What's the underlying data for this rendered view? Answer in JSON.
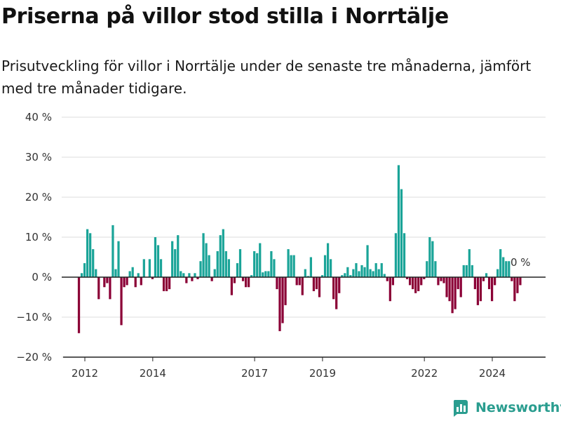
{
  "title": "Priserna på villor stod stilla i Norrtälje",
  "subtitle": "Prisutveckling för villor i Norrtälje under de senaste tre månaderna, jämfört med tre månader tidigare.",
  "brand": "Newsworthy",
  "colors": {
    "positive": "#1aa498",
    "negative": "#8b0036",
    "axis": "#222222",
    "grid": "#dddddd"
  },
  "chart_data": {
    "type": "bar",
    "ylim": [
      -20,
      40
    ],
    "yticks": [
      -20,
      -10,
      0,
      10,
      20,
      30,
      40
    ],
    "ytick_labels": [
      "−20 %",
      "−10 %",
      "0 %",
      "10 %",
      "20 %",
      "30 %",
      "40 %"
    ],
    "xticks": [
      {
        "year": 2012,
        "label": "2012"
      },
      {
        "year": 2014,
        "label": "2014"
      },
      {
        "year": 2017,
        "label": "2017"
      },
      {
        "year": 2019,
        "label": "2019"
      },
      {
        "year": 2022,
        "label": "2022"
      },
      {
        "year": 2024,
        "label": "2024"
      }
    ],
    "start": "2011-11",
    "frequency": "monthly",
    "last_label": "0 %",
    "values": [
      -14,
      1,
      3.5,
      12,
      11,
      7,
      2,
      -5.5,
      0,
      -2.5,
      -1.5,
      -5.5,
      13,
      2,
      9,
      -12,
      -2.5,
      -2,
      1.5,
      2.5,
      -2.5,
      1,
      -2,
      4.5,
      0,
      4.5,
      -0.5,
      10,
      8,
      4.5,
      -3.5,
      -3.5,
      -3,
      9,
      7,
      10.5,
      1.5,
      1,
      -1.5,
      1,
      -1,
      1,
      -0.5,
      4,
      11,
      8.5,
      5.5,
      -1,
      2,
      6.5,
      10.5,
      12,
      6.5,
      4.5,
      -4.5,
      -1.5,
      3.5,
      7,
      -1,
      -2.5,
      -2.5,
      0.5,
      6.5,
      6,
      8.5,
      1.2,
      1.5,
      1.5,
      6.5,
      4.5,
      -3,
      -13.5,
      -11.5,
      -7,
      7,
      5.5,
      5.5,
      -2,
      -2,
      -4.5,
      2,
      0.3,
      5,
      -3.5,
      -3,
      -5,
      0.5,
      5.5,
      8.5,
      4.5,
      -5.5,
      -8,
      -4,
      0.5,
      1,
      2.5,
      0.5,
      2,
      3.5,
      1.5,
      3,
      2.5,
      8,
      2,
      1.5,
      3.5,
      2,
      3.5,
      0.8,
      -1,
      -6,
      -2,
      11,
      28,
      22,
      11,
      -0.5,
      -2,
      -3,
      -4,
      -3.5,
      -2,
      -0.5,
      4,
      10,
      9,
      4,
      -2,
      -1,
      -1.5,
      -5,
      -6,
      -9,
      -8,
      -3,
      -5,
      3,
      3,
      7,
      3,
      -3,
      -7,
      -6,
      -1,
      1,
      -3,
      -6,
      -2,
      2,
      7,
      5,
      4,
      4,
      -1,
      -6,
      -4,
      -2,
      0
    ]
  }
}
